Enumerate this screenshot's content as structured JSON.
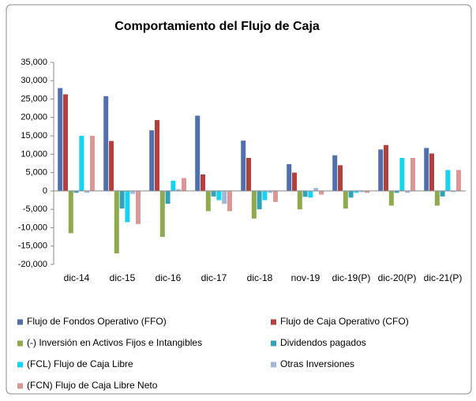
{
  "chart_data": {
    "type": "bar",
    "title": "Comportamiento del Flujo de Caja",
    "categories": [
      "dic-14",
      "dic-15",
      "dic-16",
      "dic-17",
      "dic-18",
      "nov-19",
      "dic-19(P)",
      "dic-20(P)",
      "dic-21(P)"
    ],
    "series": [
      {
        "name": "Flujo de Fondos Operativo (FFO)",
        "color": "#4f6fad",
        "values": [
          28000,
          25800,
          16500,
          20500,
          13700,
          7300,
          9700,
          11300,
          11700
        ]
      },
      {
        "name": "Flujo de Caja Operativo (CFO)",
        "color": "#b0413e",
        "values": [
          26300,
          13600,
          19300,
          4500,
          9000,
          5000,
          7000,
          12500,
          10200
        ]
      },
      {
        "name": "(-) Inversión en Activos Fijos e Intangibles",
        "color": "#8faa4b",
        "values": [
          -11500,
          -17000,
          -12500,
          -5500,
          -7500,
          -5000,
          -4800,
          -4000,
          -4000
        ]
      },
      {
        "name": "Dividendos pagados",
        "color": "#31a2b8",
        "values": [
          -500,
          -4800,
          -3500,
          -1500,
          -5000,
          -1600,
          -1800,
          -500,
          -1500
        ]
      },
      {
        "name": "(FCL) Flujo de Caja Libre",
        "color": "#17d3f0",
        "values": [
          15000,
          -8500,
          2800,
          -2500,
          -2500,
          -1800,
          -500,
          9000,
          5700
        ]
      },
      {
        "name": "Otras Inversiones",
        "color": "#a4b7db",
        "values": [
          -500,
          -800,
          500,
          -3500,
          -500,
          800,
          -300,
          -500,
          -300
        ]
      },
      {
        "name": "(FCN) Flujo de Caja Libre Neto",
        "color": "#d99795",
        "values": [
          15000,
          -9000,
          3500,
          -5500,
          -3000,
          -1000,
          -500,
          9000,
          5700
        ]
      }
    ],
    "ylim": [
      -20000,
      35000
    ],
    "yticks": [
      {
        "value": -20000,
        "label": "-20,000"
      },
      {
        "value": -15000,
        "label": "-15,000"
      },
      {
        "value": -10000,
        "label": "-10,000"
      },
      {
        "value": -5000,
        "label": "-5,000"
      },
      0,
      {
        "value": 5000,
        "label": "5,000"
      },
      {
        "value": 10000,
        "label": "10,000"
      },
      {
        "value": 15000,
        "label": "15,000"
      },
      {
        "value": 20000,
        "label": "20,000"
      },
      {
        "value": 25000,
        "label": "25,000"
      },
      {
        "value": 30000,
        "label": "30,000"
      },
      {
        "value": 35000,
        "label": "35,000"
      }
    ],
    "grid": false
  }
}
